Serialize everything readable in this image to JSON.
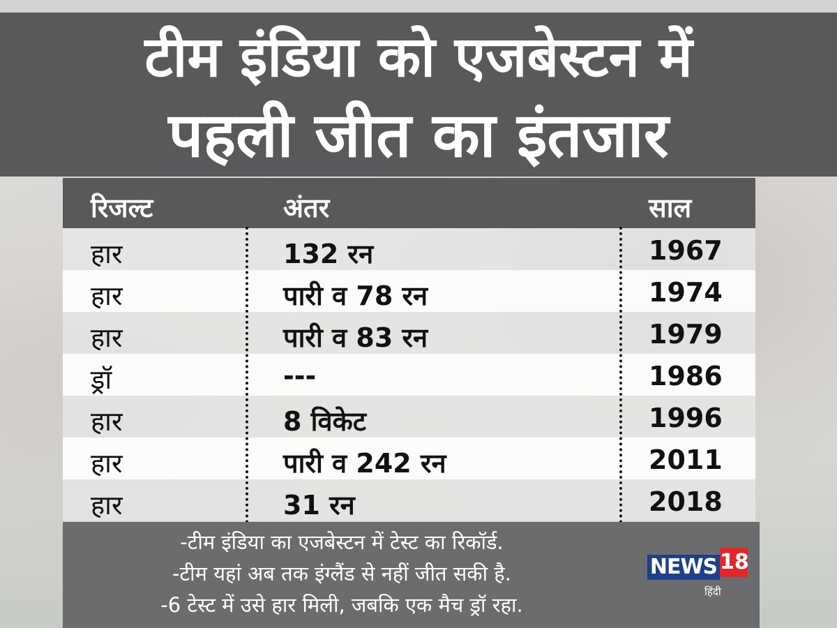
{
  "title": {
    "line1": "टीम इंडिया को एजबेस्टन में",
    "line2": "पहली जीत का इंतजार"
  },
  "table": {
    "headers": [
      "रिजल्ट",
      "अंतर",
      "साल"
    ],
    "rows": [
      {
        "result": "हार",
        "margin": "132 रन",
        "year": "1967"
      },
      {
        "result": "हार",
        "margin": "पारी व 78 रन",
        "year": "1974"
      },
      {
        "result": "हार",
        "margin": "पारी व 83 रन",
        "year": "1979"
      },
      {
        "result": "ड्रॉ",
        "margin": "---",
        "year": "1986"
      },
      {
        "result": "हार",
        "margin": "8 विकेट",
        "year": "1996"
      },
      {
        "result": "हार",
        "margin": "पारी व 242 रन",
        "year": "2011"
      },
      {
        "result": "हार",
        "margin": "31 रन",
        "year": "2018"
      }
    ]
  },
  "notes": [
    "-टीम इंडिया का एजबेस्टन में टेस्ट का रिकॉर्ड.",
    "-टीम यहां अब तक इंग्लैंड से नहीं जीत सकी है.",
    "-6 टेस्ट में उसे हार मिली, जबकि एक मैच ड्रॉ रहा."
  ],
  "logo": {
    "news": "NEWS",
    "number": "18",
    "sub": "हिंदी"
  },
  "colors": {
    "band": "#58595b",
    "footer": "#6b6c6e",
    "logo_blue": "#1f3f86",
    "logo_red": "#e2262a"
  }
}
